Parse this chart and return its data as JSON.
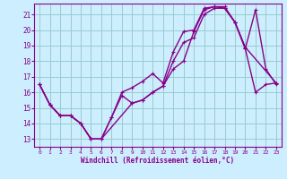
{
  "xlabel": "Windchill (Refroidissement éolien,°C)",
  "bg_color": "#cceeff",
  "grid_color": "#99cccc",
  "line_color": "#880088",
  "ylim": [
    12.5,
    21.7
  ],
  "xlim": [
    -0.5,
    23.5
  ],
  "yticks": [
    13,
    14,
    15,
    16,
    17,
    18,
    19,
    20,
    21
  ],
  "xticks": [
    0,
    1,
    2,
    3,
    4,
    5,
    6,
    7,
    8,
    9,
    10,
    11,
    12,
    13,
    14,
    15,
    16,
    17,
    18,
    19,
    20,
    21,
    22,
    23
  ],
  "line1_x": [
    0,
    1,
    2,
    3,
    4,
    5,
    6,
    7,
    8,
    9,
    10,
    11,
    12,
    13,
    14,
    15,
    16,
    17,
    18,
    19,
    20,
    21,
    22,
    23
  ],
  "line1_y": [
    16.5,
    15.2,
    14.5,
    14.5,
    14.0,
    13.0,
    13.0,
    14.4,
    15.8,
    15.3,
    15.5,
    16.0,
    16.4,
    17.5,
    18.0,
    19.9,
    21.3,
    21.5,
    21.5,
    20.5,
    18.8,
    21.3,
    17.5,
    16.5
  ],
  "line2_x": [
    0,
    1,
    2,
    3,
    4,
    5,
    6,
    7,
    8,
    9,
    10,
    11,
    12,
    13,
    14,
    15,
    16,
    17,
    18,
    19,
    20,
    21,
    22,
    23
  ],
  "line2_y": [
    16.5,
    15.2,
    14.5,
    14.5,
    14.0,
    13.0,
    13.0,
    14.4,
    16.0,
    16.3,
    16.7,
    17.2,
    16.6,
    18.6,
    19.9,
    20.0,
    21.4,
    21.5,
    21.4,
    20.5,
    18.8,
    16.0,
    16.5,
    16.6
  ],
  "line3_x": [
    0,
    1,
    2,
    3,
    4,
    5,
    6,
    9,
    10,
    11,
    12,
    13,
    14,
    15,
    16,
    17,
    18,
    19,
    20,
    23
  ],
  "line3_y": [
    16.5,
    15.2,
    14.5,
    14.5,
    14.0,
    13.0,
    13.0,
    15.3,
    15.5,
    16.0,
    16.4,
    18.0,
    19.2,
    19.5,
    21.0,
    21.4,
    21.4,
    20.5,
    18.9,
    16.6
  ],
  "markersize": 3,
  "linewidth": 1.0
}
